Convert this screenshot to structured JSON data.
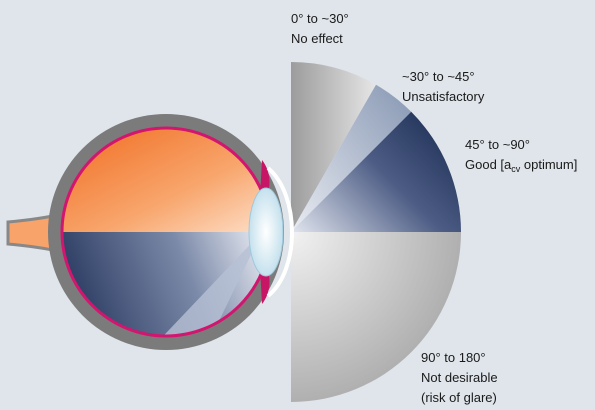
{
  "labels": [
    {
      "lines": [
        "0° to ~30°",
        "No effect"
      ]
    },
    {
      "lines": [
        "~30° to ~45°",
        "Unsatisfactory"
      ]
    },
    {
      "lines": [
        "45° to ~90°"
      ],
      "rich": [
        "Good [a",
        "cv",
        " optimum]"
      ]
    },
    {
      "lines": [
        "90° to 180°",
        "Not desirable",
        "(risk of glare)"
      ]
    }
  ]
}
